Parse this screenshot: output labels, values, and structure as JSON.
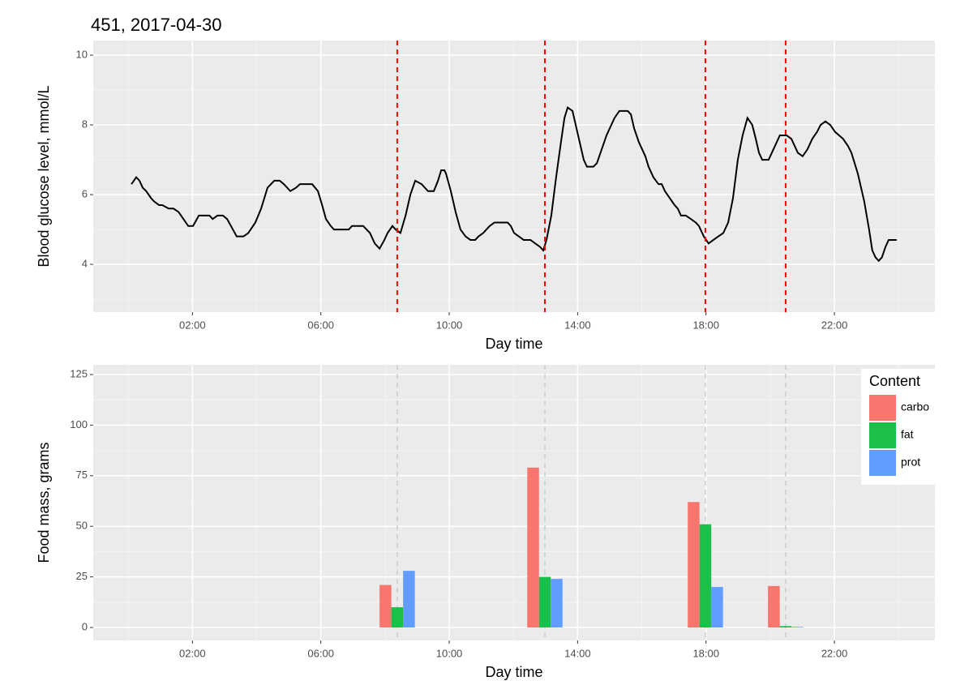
{
  "chart_data": [
    {
      "type": "line",
      "title": "451, 2017-04-30",
      "x_label": "Day time",
      "y_label": "Blood glucose level, mmol/L",
      "color": "#000000",
      "x": [
        0.1,
        0.25,
        0.35,
        0.45,
        0.56,
        0.71,
        0.81,
        0.96,
        1.06,
        1.26,
        1.41,
        1.57,
        1.72,
        1.87,
        2.02,
        2.2,
        2.53,
        2.63,
        2.78,
        2.95,
        3.08,
        3.38,
        3.59,
        3.74,
        3.96,
        4.14,
        4.34,
        4.55,
        4.72,
        4.85,
        5.05,
        5.23,
        5.35,
        5.73,
        5.91,
        6.04,
        6.16,
        6.31,
        6.41,
        6.87,
        6.97,
        7.32,
        7.53,
        7.68,
        7.83,
        7.98,
        8.08,
        8.23,
        8.33,
        8.48,
        8.64,
        8.79,
        8.94,
        9.14,
        9.34,
        9.52,
        9.65,
        9.75,
        9.85,
        9.9,
        10.05,
        10.2,
        10.35,
        10.51,
        10.66,
        10.81,
        10.91,
        11.06,
        11.16,
        11.26,
        11.41,
        11.82,
        11.92,
        12.02,
        12.17,
        12.32,
        12.53,
        12.68,
        12.83,
        12.93,
        13.03,
        13.18,
        13.33,
        13.48,
        13.59,
        13.69,
        13.84,
        13.94,
        14.09,
        14.19,
        14.29,
        14.49,
        14.6,
        14.75,
        14.9,
        15.0,
        15.15,
        15.3,
        15.56,
        15.66,
        15.76,
        15.91,
        16.11,
        16.21,
        16.36,
        16.52,
        16.62,
        16.72,
        16.87,
        17.02,
        17.12,
        17.22,
        17.37,
        17.53,
        17.68,
        17.78,
        17.93,
        18.08,
        18.23,
        18.38,
        18.54,
        18.69,
        18.84,
        18.99,
        19.14,
        19.29,
        19.44,
        19.55,
        19.65,
        19.75,
        19.95,
        20.1,
        20.2,
        20.3,
        20.51,
        20.66,
        20.76,
        20.86,
        21.01,
        21.16,
        21.31,
        21.46,
        21.57,
        21.72,
        21.87,
        22.02,
        22.27,
        22.42,
        22.53,
        22.73,
        22.93,
        23.08,
        23.18,
        23.28,
        23.38,
        23.48,
        23.59,
        23.69,
        23.94
      ],
      "values": [
        6.3,
        6.5,
        6.4,
        6.2,
        6.1,
        5.9,
        5.8,
        5.7,
        5.7,
        5.6,
        5.6,
        5.5,
        5.3,
        5.1,
        5.1,
        5.4,
        5.4,
        5.3,
        5.4,
        5.4,
        5.3,
        4.8,
        4.8,
        4.9,
        5.2,
        5.6,
        6.2,
        6.4,
        6.4,
        6.3,
        6.1,
        6.2,
        6.3,
        6.3,
        6.1,
        5.7,
        5.3,
        5.1,
        5.0,
        5.0,
        5.1,
        5.1,
        4.9,
        4.6,
        4.45,
        4.7,
        4.9,
        5.1,
        5.0,
        4.9,
        5.4,
        6.0,
        6.4,
        6.3,
        6.1,
        6.1,
        6.4,
        6.7,
        6.7,
        6.6,
        6.1,
        5.5,
        5.0,
        4.8,
        4.7,
        4.7,
        4.8,
        4.9,
        5.0,
        5.1,
        5.2,
        5.2,
        5.1,
        4.9,
        4.8,
        4.7,
        4.7,
        4.6,
        4.5,
        4.4,
        4.7,
        5.4,
        6.5,
        7.5,
        8.2,
        8.5,
        8.4,
        8.0,
        7.4,
        7.0,
        6.8,
        6.8,
        6.9,
        7.3,
        7.7,
        7.9,
        8.2,
        8.4,
        8.4,
        8.3,
        7.9,
        7.5,
        7.1,
        6.8,
        6.5,
        6.3,
        6.3,
        6.1,
        5.9,
        5.7,
        5.6,
        5.4,
        5.4,
        5.3,
        5.2,
        5.1,
        4.8,
        4.6,
        4.7,
        4.8,
        4.9,
        5.2,
        5.9,
        7.0,
        7.7,
        8.2,
        8.0,
        7.6,
        7.2,
        7.0,
        7.0,
        7.3,
        7.5,
        7.7,
        7.7,
        7.6,
        7.4,
        7.2,
        7.1,
        7.3,
        7.6,
        7.8,
        8.0,
        8.1,
        8.0,
        7.8,
        7.6,
        7.4,
        7.2,
        6.6,
        5.8,
        5.0,
        4.4,
        4.2,
        4.1,
        4.2,
        4.5,
        4.7,
        4.7
      ],
      "vlines": [
        8.38,
        12.98,
        17.98,
        20.48
      ],
      "vline_color": "#ff0000",
      "xlim": [
        -1.09,
        25.13
      ],
      "ylim": [
        2.63,
        10.42
      ],
      "xticks": [
        {
          "value": 2,
          "label": "02:00"
        },
        {
          "value": 6,
          "label": "06:00"
        },
        {
          "value": 10,
          "label": "10:00"
        },
        {
          "value": 14,
          "label": "14:00"
        },
        {
          "value": 18,
          "label": "18:00"
        },
        {
          "value": 22,
          "label": "22:00"
        }
      ],
      "yticks": [
        4,
        6,
        8,
        10
      ],
      "grid": true
    },
    {
      "type": "bar",
      "x_label": "Day time",
      "y_label": "Food mass, grams",
      "x": [
        8.38,
        12.98,
        17.98,
        20.48
      ],
      "series": [
        {
          "name": "carbo",
          "color": "#f8766d",
          "values": [
            21,
            79,
            62,
            20.5
          ]
        },
        {
          "name": "fat",
          "color": "#1bbf4a",
          "values": [
            10,
            25,
            51,
            0.7
          ]
        },
        {
          "name": "prot",
          "color": "#619cff",
          "values": [
            28,
            24,
            20,
            0.3
          ]
        }
      ],
      "vlines": [
        8.38,
        12.98,
        17.98,
        20.48
      ],
      "vline_color": "#cccccc",
      "legend_title": "Content",
      "legend": "top-right",
      "xlim": [
        -1.09,
        25.13
      ],
      "ylim": [
        -6.4,
        129.8
      ],
      "xticks": [
        {
          "value": 2,
          "label": "02:00"
        },
        {
          "value": 6,
          "label": "06:00"
        },
        {
          "value": 10,
          "label": "10:00"
        },
        {
          "value": 14,
          "label": "14:00"
        },
        {
          "value": 18,
          "label": "18:00"
        },
        {
          "value": 22,
          "label": "22:00"
        }
      ],
      "yticks": [
        0,
        25,
        50,
        75,
        100,
        125
      ],
      "grid": true
    }
  ]
}
